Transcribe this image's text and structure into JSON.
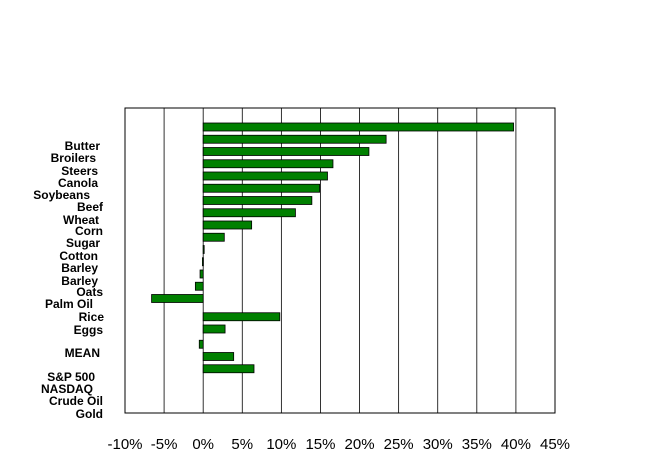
{
  "chart_data": {
    "type": "bar",
    "orientation": "horizontal",
    "categories": [
      "Butter",
      "Broilers",
      "Steers",
      "Canola",
      "Soybeans",
      "Beef",
      "Wheat",
      "Corn",
      "Sugar",
      "Cotton",
      "Barley",
      "Barley",
      "Oats",
      "Palm Oil",
      "Rice",
      "Eggs",
      "MEAN",
      "S&P 500",
      "NASDAQ",
      "Crude Oil",
      "Gold"
    ],
    "values": [
      39.7,
      23.4,
      21.2,
      16.6,
      15.9,
      14.9,
      13.9,
      11.8,
      6.2,
      2.7,
      0.0,
      -0.1,
      -0.4,
      -1.0,
      -6.6,
      9.8,
      2.8,
      -0.5,
      3.9,
      6.5,
      null
    ],
    "title": "",
    "xlabel": "",
    "ylabel": "",
    "xlim": [
      -10,
      45
    ],
    "xticks": [
      -10,
      -5,
      0,
      5,
      10,
      15,
      20,
      25,
      30,
      35,
      40,
      45
    ],
    "xtick_labels": [
      "-10%",
      "-5%",
      "0%",
      "5%",
      "10%",
      "15%",
      "20%",
      "25%",
      "30%",
      "35%",
      "40%",
      "45%"
    ],
    "grid": "vertical",
    "bar_color": "#008000",
    "bar_edge_color": "#000000"
  }
}
